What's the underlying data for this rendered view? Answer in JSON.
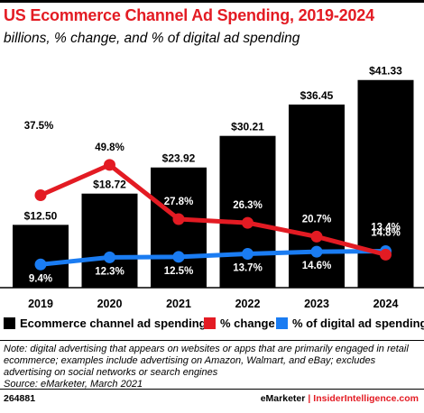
{
  "header": {
    "title": "US Ecommerce Channel Ad Spending, 2019-2024",
    "subtitle": "billions, % change, and % of digital ad spending"
  },
  "chart_data": {
    "type": "bar",
    "categories": [
      "2019",
      "2020",
      "2021",
      "2022",
      "2023",
      "2024"
    ],
    "series": [
      {
        "name": "Ecommerce channel ad spending",
        "kind": "bar",
        "values": [
          12.5,
          18.72,
          23.92,
          30.21,
          36.45,
          41.33
        ],
        "labels": [
          "$12.50",
          "$18.72",
          "$23.92",
          "$30.21",
          "$36.45",
          "$41.33"
        ],
        "color": "#000000"
      },
      {
        "name": "% change",
        "kind": "line",
        "values": [
          37.5,
          49.8,
          27.8,
          26.3,
          20.7,
          13.4
        ],
        "labels": [
          "37.5%",
          "49.8%",
          "27.8%",
          "26.3%",
          "20.7%",
          "13.4%"
        ],
        "color": "#e31b23"
      },
      {
        "name": "% of digital ad spending",
        "kind": "line",
        "values": [
          9.4,
          12.3,
          12.5,
          13.7,
          14.6,
          14.8
        ],
        "labels": [
          "9.4%",
          "12.3%",
          "12.5%",
          "13.7%",
          "14.6%",
          "14.8%"
        ],
        "color": "#1a7cf2"
      }
    ],
    "ylim": [
      0,
      42
    ],
    "ylim_percent": [
      0,
      60
    ],
    "grid": false,
    "legend_position": "bottom"
  },
  "note": {
    "text": "Note: digital advertising that appears on websites or apps that are primarily engaged in retail ecommerce; examples include advertising on Amazon, Walmart, and eBay; excludes advertising on social networks or search engines",
    "source": "Source: eMarketer, March 2021"
  },
  "footer": {
    "id": "264881",
    "brand": "eMarketer",
    "separator": "|",
    "site": "InsiderIntelligence.com"
  }
}
